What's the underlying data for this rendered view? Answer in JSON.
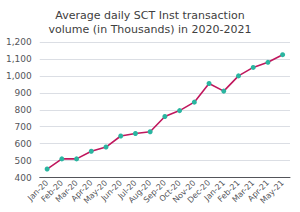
{
  "chart_data": {
    "type": "line",
    "title": "Average daily SCT Inst transaction\nvolume (in Thousands) in 2020-2021",
    "categories": [
      "Jan-20",
      "Feb-20",
      "Mar-20",
      "Apr-20",
      "May-20",
      "Jun-20",
      "Jul-20",
      "Aug-20",
      "Sep-20",
      "Oct-20",
      "Nov-20",
      "Dec-20",
      "Jan-21",
      "Feb-21",
      "Mar-21",
      "Apr-21",
      "May-21"
    ],
    "values": [
      450,
      510,
      510,
      555,
      580,
      645,
      660,
      670,
      760,
      795,
      845,
      955,
      910,
      1000,
      1050,
      1080,
      1125
    ],
    "color": "#c0175d",
    "colors": [
      "#2ab5a0",
      "#2ab5a0",
      "#2ab5a0",
      "#2ab5a0",
      "#2ab5a0",
      "#2ab5a0",
      "#2ab5a0",
      "#2ab5a0",
      "#2ab5a0",
      "#2ab5a0",
      "#2ab5a0",
      "#2ab5a0",
      "#2ab5a0",
      "#2ab5a0",
      "#2ab5a0",
      "#2ab5a0",
      "#2ab5a0"
    ],
    "marker": "circle",
    "ylim": [
      400,
      1200
    ],
    "yticks": [
      400,
      500,
      600,
      700,
      800,
      900,
      1000,
      1100,
      1200
    ],
    "grid": true
  }
}
